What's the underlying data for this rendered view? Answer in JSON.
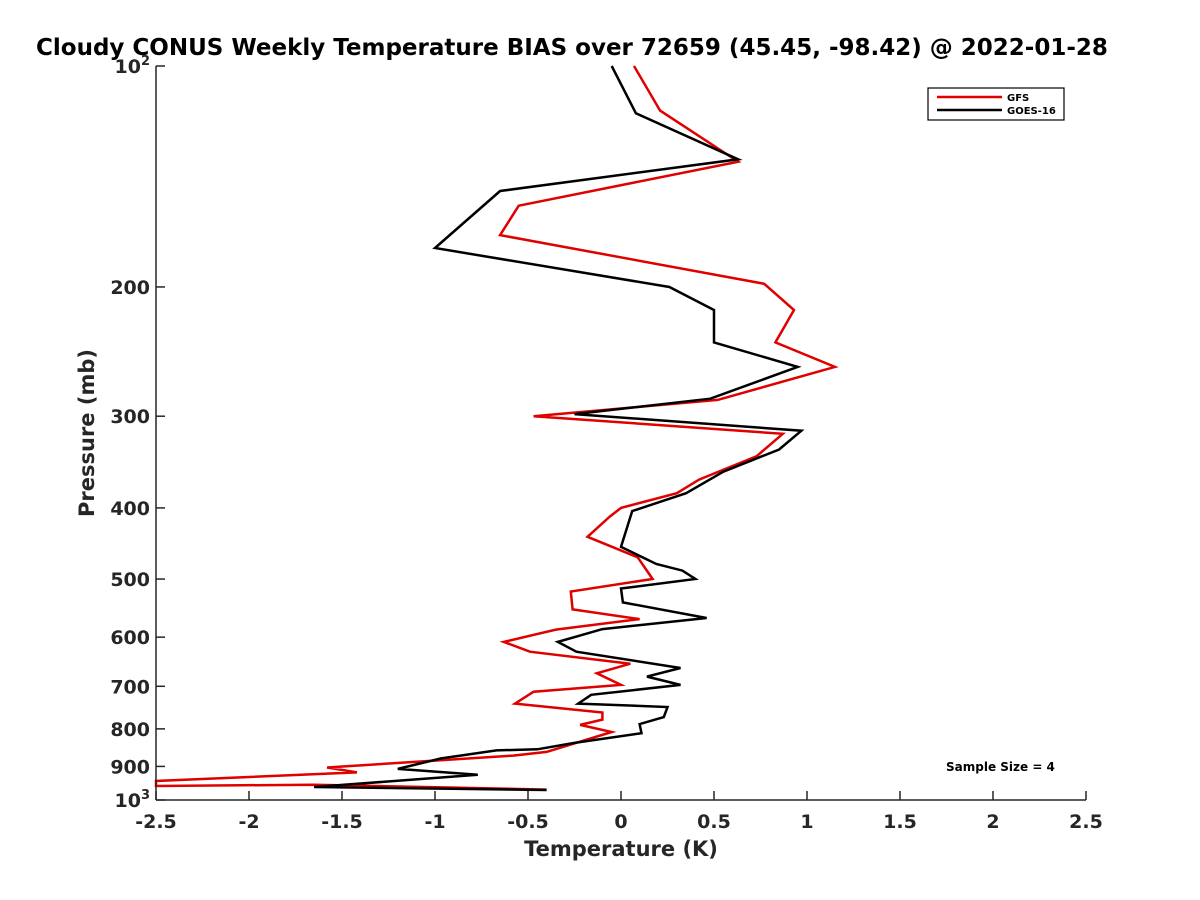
{
  "chart_data": {
    "type": "line",
    "title": "Cloudy CONUS Weekly Temperature BIAS over 72659 (45.45, -98.42) @ 2022-01-28",
    "xlabel": "Temperature (K)",
    "ylabel": "Pressure (mb)",
    "xlim": [
      -2.5,
      2.5
    ],
    "ylim": [
      100,
      1000
    ],
    "y_scale": "log",
    "y_reversed": true,
    "grid": false,
    "legend_position": "top-right",
    "x_ticks": [
      "-2.5",
      "-2",
      "-1.5",
      "-1",
      "-0.5",
      "0",
      "0.5",
      "1",
      "1.5",
      "2",
      "2.5"
    ],
    "y_ticks": [
      {
        "base": "10",
        "exp": "2",
        "value": 100
      },
      {
        "label": "200",
        "value": 200
      },
      {
        "label": "300",
        "value": 300
      },
      {
        "label": "400",
        "value": 400
      },
      {
        "label": "500",
        "value": 500
      },
      {
        "label": "600",
        "value": 600
      },
      {
        "label": "700",
        "value": 700
      },
      {
        "label": "800",
        "value": 800
      },
      {
        "label": "900",
        "value": 900
      },
      {
        "base": "10",
        "exp": "3",
        "value": 1000
      }
    ],
    "annotation": "Sample Size = 4",
    "series": [
      {
        "name": "GFS",
        "color": "#e00000",
        "points": [
          [
            0.07,
            100
          ],
          [
            0.21,
            115
          ],
          [
            0.63,
            135
          ],
          [
            -0.55,
            155
          ],
          [
            -0.65,
            170
          ],
          [
            0.77,
            198
          ],
          [
            0.93,
            215
          ],
          [
            0.83,
            238
          ],
          [
            1.15,
            257
          ],
          [
            0.52,
            285
          ],
          [
            -0.47,
            300
          ],
          [
            0.87,
            317
          ],
          [
            0.73,
            340
          ],
          [
            0.42,
            366
          ],
          [
            0.3,
            382
          ],
          [
            0.0,
            400
          ],
          [
            -0.06,
            411
          ],
          [
            -0.18,
            438
          ],
          [
            0.09,
            467
          ],
          [
            0.17,
            500
          ],
          [
            -0.27,
            520
          ],
          [
            -0.26,
            550
          ],
          [
            0.1,
            567
          ],
          [
            -0.35,
            586
          ],
          [
            -0.63,
            609
          ],
          [
            -0.49,
            628
          ],
          [
            0.05,
            652
          ],
          [
            -0.13,
            672
          ],
          [
            0.0,
            697
          ],
          [
            -0.47,
            712
          ],
          [
            -0.57,
            739
          ],
          [
            -0.1,
            760
          ],
          [
            -0.1,
            777
          ],
          [
            -0.22,
            790
          ],
          [
            -0.05,
            808
          ],
          [
            -0.4,
            860
          ],
          [
            -0.58,
            870
          ],
          [
            -1.58,
            903
          ],
          [
            -1.42,
            917
          ],
          [
            -2.5,
            942
          ],
          [
            -2.5,
            957
          ],
          [
            -1.65,
            953
          ],
          [
            -0.4,
            968
          ]
        ]
      },
      {
        "name": "GOES-16",
        "color": "#000000",
        "points": [
          [
            -0.05,
            100
          ],
          [
            0.08,
            116
          ],
          [
            0.63,
            134
          ],
          [
            -0.65,
            148
          ],
          [
            -1.0,
            177
          ],
          [
            0.26,
            200
          ],
          [
            0.5,
            215
          ],
          [
            0.5,
            238
          ],
          [
            0.95,
            257
          ],
          [
            0.48,
            284
          ],
          [
            -0.25,
            298
          ],
          [
            0.97,
            314
          ],
          [
            0.85,
            333
          ],
          [
            0.55,
            357
          ],
          [
            0.35,
            382
          ],
          [
            0.06,
            404
          ],
          [
            0.0,
            452
          ],
          [
            0.19,
            477
          ],
          [
            0.33,
            487
          ],
          [
            0.4,
            500
          ],
          [
            0.0,
            515
          ],
          [
            0.01,
            538
          ],
          [
            0.46,
            565
          ],
          [
            -0.1,
            585
          ],
          [
            -0.34,
            609
          ],
          [
            -0.24,
            628
          ],
          [
            0.32,
            661
          ],
          [
            0.14,
            679
          ],
          [
            0.32,
            697
          ],
          [
            -0.16,
            719
          ],
          [
            -0.23,
            739
          ],
          [
            0.25,
            747
          ],
          [
            0.23,
            771
          ],
          [
            0.1,
            788
          ],
          [
            0.11,
            811
          ],
          [
            -0.25,
            836
          ],
          [
            -0.45,
            853
          ],
          [
            -0.67,
            856
          ],
          [
            -0.97,
            878
          ],
          [
            -1.2,
            907
          ],
          [
            -0.77,
            924
          ],
          [
            -1.65,
            960
          ],
          [
            -0.4,
            969
          ]
        ]
      }
    ]
  }
}
